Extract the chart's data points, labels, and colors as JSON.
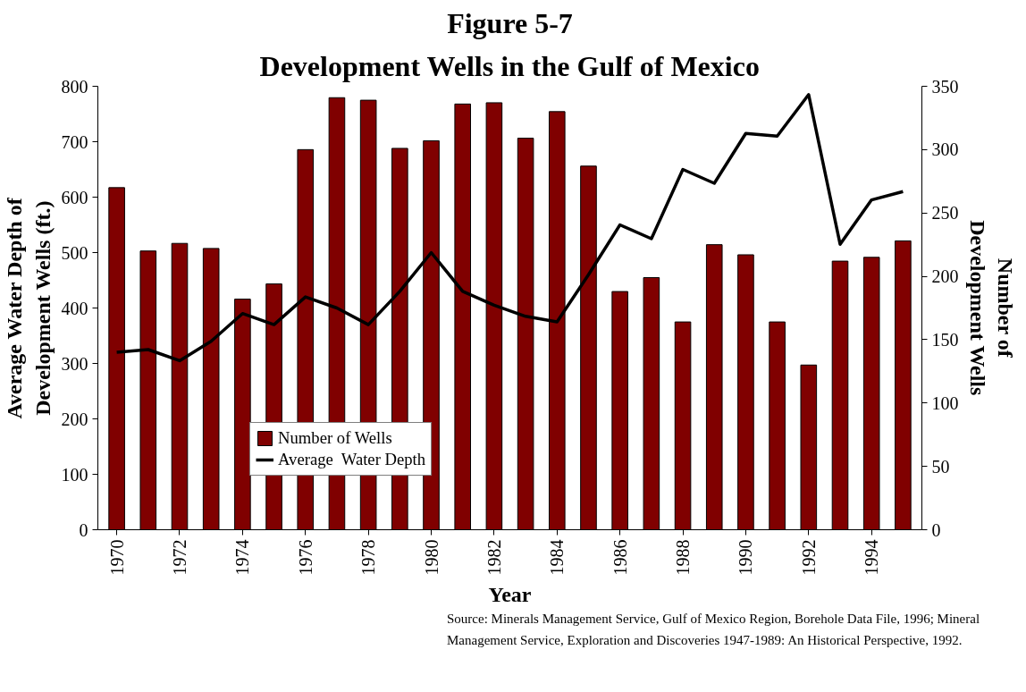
{
  "chart_data": {
    "type": "bar",
    "title": "Figure 5-7",
    "subtitle": "Development Wells in the Gulf of Mexico",
    "xlabel": "Year",
    "ylabel": "Average Water Depth of Development Wells (ft.)",
    "y2label": "Number of Development Wells",
    "categories": [
      "1970",
      null,
      "1972",
      null,
      "1974",
      null,
      "1976",
      null,
      "1978",
      null,
      "1980",
      null,
      "1982",
      null,
      "1984",
      null,
      "1986",
      null,
      "1988",
      null,
      "1990",
      null,
      "1992",
      null,
      "1994",
      null
    ],
    "series": [
      {
        "name": "Number of Wells",
        "axis": "y2",
        "color": "#800000",
        "values": [
          270,
          220,
          226,
          222,
          182,
          194,
          300,
          341,
          339,
          301,
          307,
          336,
          337,
          309,
          330,
          287,
          188,
          199,
          164,
          225,
          217,
          164,
          130,
          212,
          215,
          228
        ]
      },
      {
        "name": "Average  Water Depth",
        "type": "line",
        "color": "#000000",
        "values": [
          320,
          325,
          305,
          340,
          390,
          370,
          420,
          400,
          370,
          430,
          500,
          430,
          405,
          385,
          375,
          460,
          550,
          525,
          650,
          625,
          715,
          710,
          785,
          515,
          595,
          610
        ]
      }
    ],
    "ylim": [
      0,
      800
    ],
    "yticks": [
      0,
      100,
      200,
      300,
      400,
      500,
      600,
      700,
      800
    ],
    "y2lim": [
      0,
      350
    ],
    "y2ticks": [
      0,
      50,
      100,
      150,
      200,
      250,
      300,
      350
    ],
    "grid": false,
    "legend": "left",
    "annotations": [
      "Source: Minerals Management Service, Gulf of Mexico Region, Borehole Data File, 1996; Mineral Management Service, Exploration and Discoveries 1947-1989: An Historical Perspective, 1992."
    ]
  }
}
